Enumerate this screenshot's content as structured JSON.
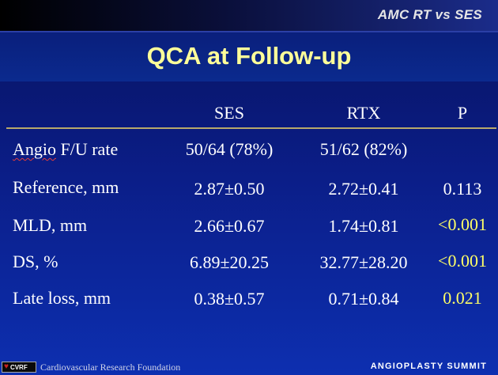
{
  "header": {
    "tag": "AMC RT vs SES",
    "title": "QCA at Follow-up"
  },
  "table": {
    "columns": [
      "",
      "SES",
      "RTX",
      "P"
    ],
    "rows": [
      {
        "label": "Angio F/U rate",
        "ses": "50/64 (78%)",
        "rtx": "51/62 (82%)",
        "p": ""
      },
      {
        "label": "Reference, mm",
        "ses": "2.87±0.50",
        "rtx": "2.72±0.41",
        "p": "0.113"
      },
      {
        "label": "MLD, mm",
        "ses": "2.66±0.67",
        "rtx": "1.74±0.81",
        "p": "<0.001"
      },
      {
        "label": "DS, %",
        "ses": "6.89±20.25",
        "rtx": "32.77±28.20",
        "p": "<0.001"
      },
      {
        "label": "Late loss, mm",
        "ses": "0.38±0.57",
        "rtx": "0.71±0.84",
        "p": "0.021"
      }
    ]
  },
  "footer": {
    "logo_text": "CVRF",
    "foundation": "Cardiovascular Research Foundation",
    "event": "ANGIOPLASTY SUMMIT"
  },
  "colors": {
    "title": "#ffff99",
    "significant": "#ffff66",
    "background": "#0b1d86"
  }
}
